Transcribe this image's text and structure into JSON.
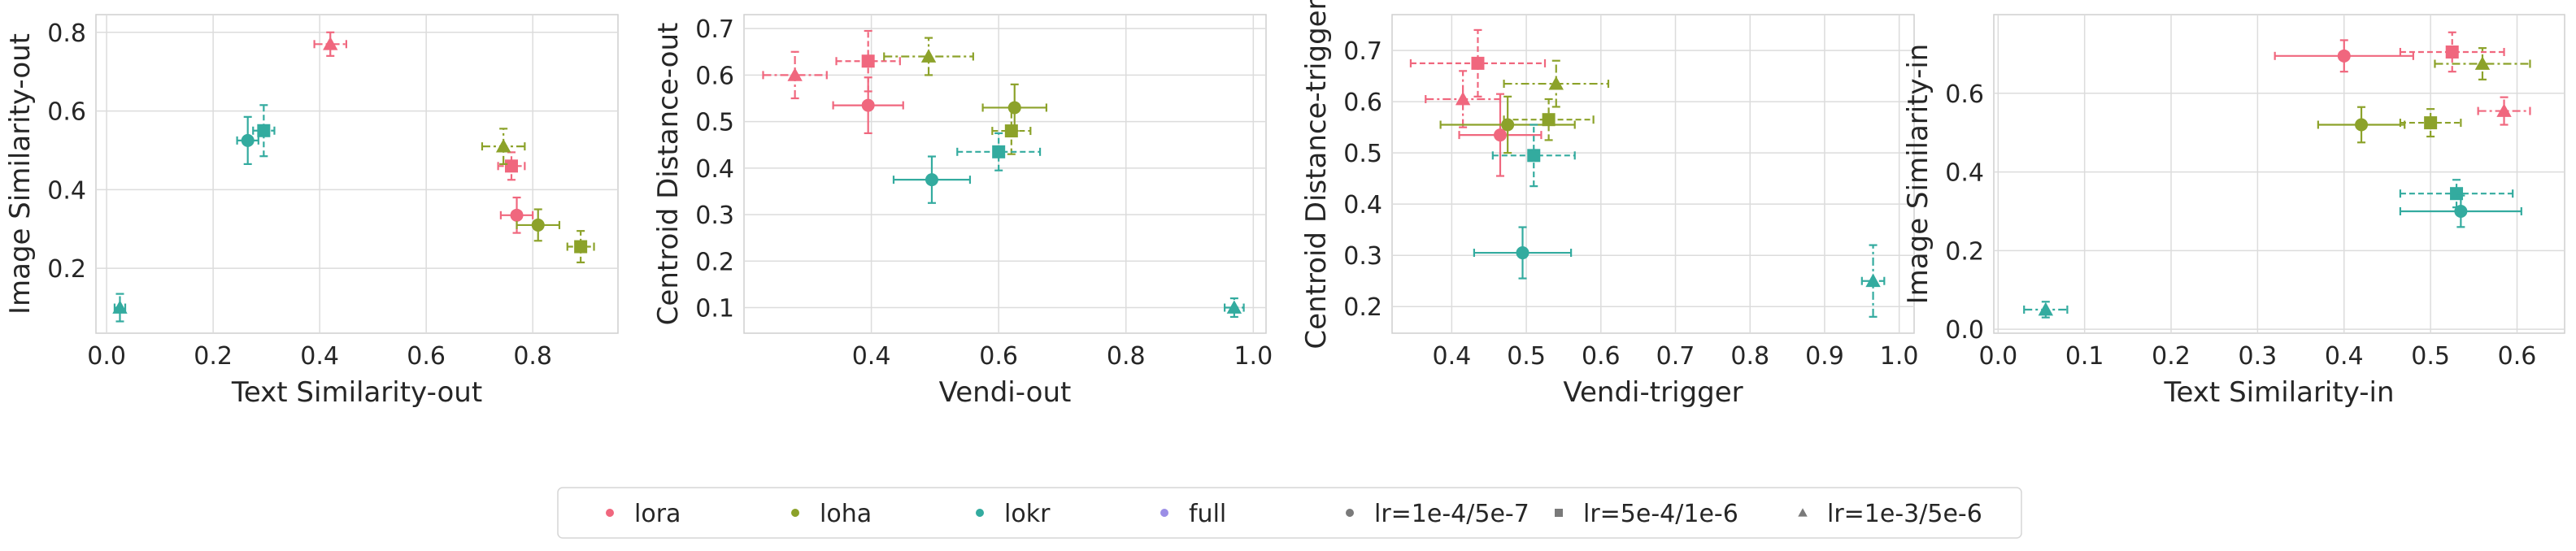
{
  "palette": {
    "lora": "#f0677e",
    "loha": "#8ca22a",
    "lokr": "#33ab9f",
    "full": "#9b8ee6",
    "neutral": "#7a7a7a",
    "grid": "#dcdcdc",
    "spine": "#cfcfcf"
  },
  "legend": {
    "entries": [
      {
        "label": "lora",
        "marker": "circle",
        "color_key": "lora"
      },
      {
        "label": "loha",
        "marker": "circle",
        "color_key": "loha"
      },
      {
        "label": "lokr",
        "marker": "circle",
        "color_key": "lokr"
      },
      {
        "label": "full",
        "marker": "circle",
        "color_key": "full"
      },
      {
        "label": "lr=1e-4/5e-7",
        "marker": "circle",
        "color_key": "neutral"
      },
      {
        "label": "lr=5e-4/1e-6",
        "marker": "square",
        "color_key": "neutral"
      },
      {
        "label": "lr=1e-3/5e-6",
        "marker": "triangle",
        "color_key": "neutral"
      }
    ]
  },
  "chart_data": [
    {
      "type": "scatter",
      "xlabel": "Text Similarity-out",
      "ylabel": "Image Similarity-out",
      "xlim": [
        -0.02,
        0.96
      ],
      "ylim": [
        0.035,
        0.845
      ],
      "xticks": [
        0.0,
        0.2,
        0.4,
        0.6,
        0.8
      ],
      "xtick_labels": [
        "0.0",
        "0.2",
        "0.4",
        "0.6",
        "0.8"
      ],
      "yticks": [
        0.2,
        0.4,
        0.6,
        0.8
      ],
      "ytick_labels": [
        "0.2",
        "0.4",
        "0.6",
        "0.8"
      ],
      "grid": true,
      "points": [
        {
          "method": "lora",
          "lr": "lr=1e-3/5e-6",
          "x": 0.42,
          "y": 0.77,
          "xerr": 0.03,
          "yerr": 0.03
        },
        {
          "method": "lora",
          "lr": "lr=5e-4/1e-6",
          "x": 0.76,
          "y": 0.46,
          "xerr": 0.025,
          "yerr": 0.035
        },
        {
          "method": "lora",
          "lr": "lr=1e-4/5e-7",
          "x": 0.77,
          "y": 0.335,
          "xerr": 0.03,
          "yerr": 0.045
        },
        {
          "method": "loha",
          "lr": "lr=1e-3/5e-6",
          "x": 0.745,
          "y": 0.51,
          "xerr": 0.04,
          "yerr": 0.045
        },
        {
          "method": "loha",
          "lr": "lr=1e-4/5e-7",
          "x": 0.81,
          "y": 0.31,
          "xerr": 0.04,
          "yerr": 0.04
        },
        {
          "method": "loha",
          "lr": "lr=5e-4/1e-6",
          "x": 0.89,
          "y": 0.255,
          "xerr": 0.025,
          "yerr": 0.04
        },
        {
          "method": "lokr",
          "lr": "lr=1e-4/5e-7",
          "x": 0.265,
          "y": 0.525,
          "xerr": 0.02,
          "yerr": 0.06
        },
        {
          "method": "lokr",
          "lr": "lr=5e-4/1e-6",
          "x": 0.295,
          "y": 0.55,
          "xerr": 0.02,
          "yerr": 0.065
        },
        {
          "method": "lokr",
          "lr": "lr=1e-3/5e-6",
          "x": 0.025,
          "y": 0.1,
          "xerr": 0.01,
          "yerr": 0.035
        }
      ]
    },
    {
      "type": "scatter",
      "xlabel": "Vendi-out",
      "ylabel": "Centroid Distance-out",
      "xlim": [
        0.2,
        1.02
      ],
      "ylim": [
        0.045,
        0.73
      ],
      "xticks": [
        0.4,
        0.6,
        0.8,
        1.0
      ],
      "xtick_labels": [
        "0.4",
        "0.6",
        "0.8",
        "1.0"
      ],
      "yticks": [
        0.1,
        0.2,
        0.3,
        0.4,
        0.5,
        0.6,
        0.7
      ],
      "ytick_labels": [
        "0.1",
        "0.2",
        "0.3",
        "0.4",
        "0.5",
        "0.6",
        "0.7"
      ],
      "grid": true,
      "points": [
        {
          "method": "lora",
          "lr": "lr=1e-3/5e-6",
          "x": 0.28,
          "y": 0.6,
          "xerr": 0.05,
          "yerr": 0.05
        },
        {
          "method": "lora",
          "lr": "lr=5e-4/1e-6",
          "x": 0.395,
          "y": 0.63,
          "xerr": 0.05,
          "yerr": 0.065
        },
        {
          "method": "lora",
          "lr": "lr=1e-4/5e-7",
          "x": 0.395,
          "y": 0.535,
          "xerr": 0.055,
          "yerr": 0.06
        },
        {
          "method": "loha",
          "lr": "lr=1e-3/5e-6",
          "x": 0.49,
          "y": 0.64,
          "xerr": 0.07,
          "yerr": 0.04
        },
        {
          "method": "loha",
          "lr": "lr=1e-4/5e-7",
          "x": 0.625,
          "y": 0.53,
          "xerr": 0.05,
          "yerr": 0.05
        },
        {
          "method": "loha",
          "lr": "lr=5e-4/1e-6",
          "x": 0.62,
          "y": 0.48,
          "xerr": 0.03,
          "yerr": 0.05
        },
        {
          "method": "lokr",
          "lr": "lr=5e-4/1e-6",
          "x": 0.6,
          "y": 0.435,
          "xerr": 0.065,
          "yerr": 0.04
        },
        {
          "method": "lokr",
          "lr": "lr=1e-4/5e-7",
          "x": 0.495,
          "y": 0.375,
          "xerr": 0.06,
          "yerr": 0.05
        },
        {
          "method": "lokr",
          "lr": "lr=1e-3/5e-6",
          "x": 0.97,
          "y": 0.1,
          "xerr": 0.015,
          "yerr": 0.02
        }
      ]
    },
    {
      "type": "scatter",
      "xlabel": "Vendi-trigger",
      "ylabel": "Centroid Distance-trigger",
      "xlim": [
        0.32,
        1.02
      ],
      "ylim": [
        0.148,
        0.77
      ],
      "xticks": [
        0.4,
        0.5,
        0.6,
        0.7,
        0.8,
        0.9,
        1.0
      ],
      "xtick_labels": [
        "0.4",
        "0.5",
        "0.6",
        "0.7",
        "0.8",
        "0.9",
        "1.0"
      ],
      "yticks": [
        0.2,
        0.3,
        0.4,
        0.5,
        0.6,
        0.7
      ],
      "ytick_labels": [
        "0.2",
        "0.3",
        "0.4",
        "0.5",
        "0.6",
        "0.7"
      ],
      "grid": true,
      "points": [
        {
          "method": "lora",
          "lr": "lr=5e-4/1e-6",
          "x": 0.435,
          "y": 0.675,
          "xerr": 0.09,
          "yerr": 0.065
        },
        {
          "method": "lora",
          "lr": "lr=1e-3/5e-6",
          "x": 0.415,
          "y": 0.605,
          "xerr": 0.05,
          "yerr": 0.055
        },
        {
          "method": "lora",
          "lr": "lr=1e-4/5e-7",
          "x": 0.465,
          "y": 0.535,
          "xerr": 0.055,
          "yerr": 0.08
        },
        {
          "method": "loha",
          "lr": "lr=1e-3/5e-6",
          "x": 0.54,
          "y": 0.635,
          "xerr": 0.07,
          "yerr": 0.045
        },
        {
          "method": "loha",
          "lr": "lr=5e-4/1e-6",
          "x": 0.53,
          "y": 0.565,
          "xerr": 0.06,
          "yerr": 0.04
        },
        {
          "method": "loha",
          "lr": "lr=1e-4/5e-7",
          "x": 0.475,
          "y": 0.555,
          "xerr": 0.09,
          "yerr": 0.055
        },
        {
          "method": "lokr",
          "lr": "lr=5e-4/1e-6",
          "x": 0.51,
          "y": 0.495,
          "xerr": 0.055,
          "yerr": 0.06
        },
        {
          "method": "lokr",
          "lr": "lr=1e-4/5e-7",
          "x": 0.495,
          "y": 0.305,
          "xerr": 0.065,
          "yerr": 0.05
        },
        {
          "method": "lokr",
          "lr": "lr=1e-3/5e-6",
          "x": 0.965,
          "y": 0.25,
          "xerr": 0.015,
          "yerr": 0.07
        }
      ]
    },
    {
      "type": "scatter",
      "xlabel": "Text Similarity-in",
      "ylabel": "Image Similarity-in",
      "xlim": [
        -0.005,
        0.655
      ],
      "ylim": [
        -0.01,
        0.8
      ],
      "xticks": [
        0.0,
        0.1,
        0.2,
        0.3,
        0.4,
        0.5,
        0.6
      ],
      "xtick_labels": [
        "0.0",
        "0.1",
        "0.2",
        "0.3",
        "0.4",
        "0.5",
        "0.6"
      ],
      "yticks": [
        0.0,
        0.2,
        0.4,
        0.6
      ],
      "ytick_labels": [
        "0.0",
        "0.2",
        "0.4",
        "0.6"
      ],
      "grid": true,
      "points": [
        {
          "method": "lora",
          "lr": "lr=5e-4/1e-6",
          "x": 0.525,
          "y": 0.705,
          "xerr": 0.06,
          "yerr": 0.05
        },
        {
          "method": "lora",
          "lr": "lr=1e-4/5e-7",
          "x": 0.4,
          "y": 0.695,
          "xerr": 0.08,
          "yerr": 0.04
        },
        {
          "method": "lora",
          "lr": "lr=1e-3/5e-6",
          "x": 0.585,
          "y": 0.555,
          "xerr": 0.03,
          "yerr": 0.035
        },
        {
          "method": "loha",
          "lr": "lr=1e-3/5e-6",
          "x": 0.56,
          "y": 0.675,
          "xerr": 0.055,
          "yerr": 0.04
        },
        {
          "method": "loha",
          "lr": "lr=5e-4/1e-6",
          "x": 0.5,
          "y": 0.525,
          "xerr": 0.035,
          "yerr": 0.035
        },
        {
          "method": "loha",
          "lr": "lr=1e-4/5e-7",
          "x": 0.42,
          "y": 0.52,
          "xerr": 0.05,
          "yerr": 0.045
        },
        {
          "method": "lokr",
          "lr": "lr=5e-4/1e-6",
          "x": 0.53,
          "y": 0.345,
          "xerr": 0.065,
          "yerr": 0.035
        },
        {
          "method": "lokr",
          "lr": "lr=1e-4/5e-7",
          "x": 0.535,
          "y": 0.3,
          "xerr": 0.07,
          "yerr": 0.04
        },
        {
          "method": "lokr",
          "lr": "lr=1e-3/5e-6",
          "x": 0.055,
          "y": 0.05,
          "xerr": 0.025,
          "yerr": 0.02
        }
      ]
    }
  ]
}
